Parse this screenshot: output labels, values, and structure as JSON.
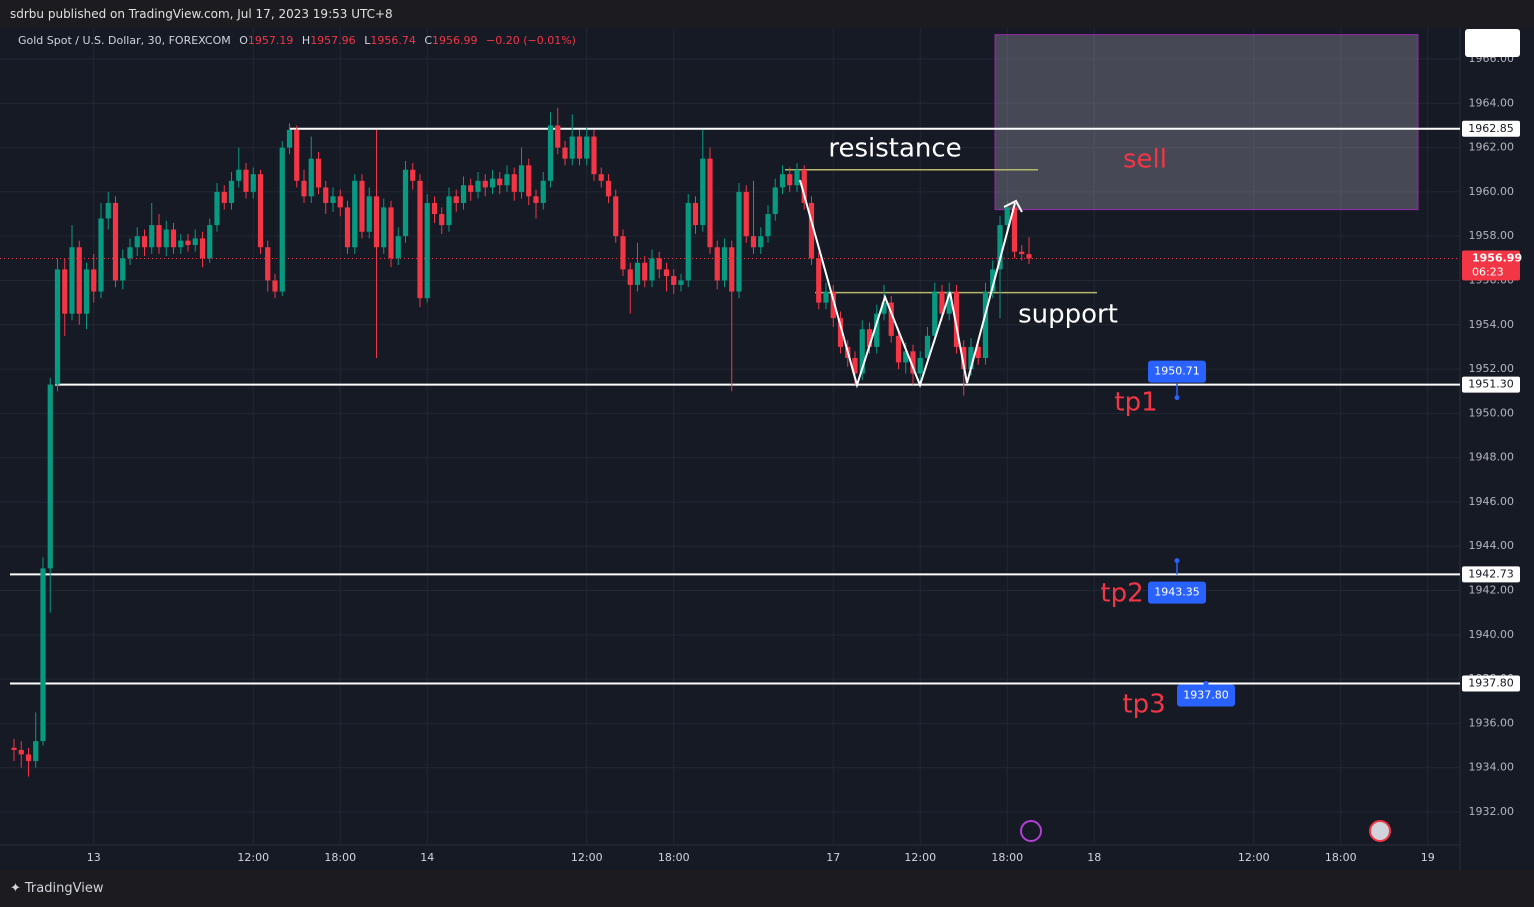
{
  "header": {
    "publisher": "sdrbu published on TradingView.com, Jul 17, 2023 19:53 UTC+8"
  },
  "footer": {
    "brand": "TradingView"
  },
  "chart_data": {
    "type": "candlestick",
    "title": "Gold Spot / U.S. Dollar, 30, FOREXCOM",
    "ohlc_labels": [
      "O",
      "H",
      "L",
      "C"
    ],
    "change": "−0.20 (−0.01%)",
    "countdown": "06:23",
    "xlim": [
      -1.93,
      199.45
    ],
    "ylim": [
      1930.51,
      1967.4
    ],
    "grid": true,
    "up_color": "#089981",
    "down_color": "#f23645",
    "xticks": [
      {
        "value": 11,
        "label": "13"
      },
      {
        "value": 33,
        "label": "12:00"
      },
      {
        "value": 45,
        "label": "18:00"
      },
      {
        "value": 57,
        "label": "14"
      },
      {
        "value": 79,
        "label": "12:00"
      },
      {
        "value": 91,
        "label": "18:00"
      },
      {
        "value": 113,
        "label": "17"
      },
      {
        "value": 125,
        "label": "12:00"
      },
      {
        "value": 137,
        "label": "18:00"
      },
      {
        "value": 149,
        "label": "18"
      },
      {
        "value": 171,
        "label": "12:00"
      },
      {
        "value": 183,
        "label": "18:00"
      },
      {
        "value": 195,
        "label": "19"
      }
    ],
    "yticks": [
      {
        "value": 1932,
        "label": "1932.00"
      },
      {
        "value": 1934,
        "label": "1934.00"
      },
      {
        "value": 1936,
        "label": "1936.00"
      },
      {
        "value": 1938,
        "label": "1938.00"
      },
      {
        "value": 1940,
        "label": "1940.00"
      },
      {
        "value": 1942,
        "label": "1942.00"
      },
      {
        "value": 1944,
        "label": "1944.00"
      },
      {
        "value": 1946,
        "label": "1946.00"
      },
      {
        "value": 1948,
        "label": "1948.00"
      },
      {
        "value": 1950,
        "label": "1950.00"
      },
      {
        "value": 1952,
        "label": "1952.00"
      },
      {
        "value": 1954,
        "label": "1954.00"
      },
      {
        "value": 1956,
        "label": "1956.00"
      },
      {
        "value": 1958,
        "label": "1958.00"
      },
      {
        "value": 1960,
        "label": "1960.00"
      },
      {
        "value": 1962,
        "label": "1962.00"
      },
      {
        "value": 1964,
        "label": "1964.00"
      },
      {
        "value": 1966,
        "label": "1966.00"
      }
    ],
    "levels": [
      {
        "value": 1962.85,
        "label": "1962.85"
      },
      {
        "value": 1951.3,
        "label": "1951.30"
      },
      {
        "value": 1942.73,
        "label": "1942.73"
      },
      {
        "value": 1937.8,
        "label": "1937.80"
      }
    ],
    "targets": [
      {
        "value": 1950.71,
        "label": "1950.71"
      },
      {
        "value": 1943.35,
        "label": "1943.35"
      },
      {
        "value": 1937.8,
        "label": "1937.80"
      }
    ],
    "resistance_level": 1961.0,
    "support_level": 1955.45,
    "sell_zone": [
      1959.2,
      1967.1
    ],
    "annotations": [
      {
        "text": "resistance"
      },
      {
        "text": "support"
      },
      {
        "text": "sell"
      },
      {
        "text": "tp1"
      },
      {
        "text": "tp2"
      },
      {
        "text": "tp3"
      }
    ],
    "candles": [
      [
        1934.9,
        1935.3,
        1934.3,
        1934.8
      ],
      [
        1934.8,
        1935.2,
        1934.0,
        1934.6
      ],
      [
        1934.6,
        1934.9,
        1933.6,
        1934.3
      ],
      [
        1934.3,
        1936.5,
        1934.0,
        1935.2
      ],
      [
        1935.2,
        1943.5,
        1935.0,
        1943.0
      ],
      [
        1943.0,
        1951.6,
        1941.0,
        1951.3
      ],
      [
        1951.3,
        1957.0,
        1951.0,
        1956.5
      ],
      [
        1956.5,
        1957.0,
        1953.5,
        1954.5
      ],
      [
        1954.5,
        1958.5,
        1954.2,
        1957.5
      ],
      [
        1957.5,
        1957.8,
        1954.0,
        1954.5
      ],
      [
        1954.5,
        1956.8,
        1953.8,
        1956.5
      ],
      [
        1956.5,
        1957.2,
        1955.0,
        1955.5
      ],
      [
        1955.5,
        1959.5,
        1955.2,
        1958.8
      ],
      [
        1958.8,
        1960.0,
        1958.3,
        1959.5
      ],
      [
        1959.5,
        1959.8,
        1955.7,
        1956.0
      ],
      [
        1956.0,
        1957.4,
        1955.6,
        1957.0
      ],
      [
        1957.0,
        1957.9,
        1956.7,
        1957.5
      ],
      [
        1957.5,
        1958.4,
        1957.1,
        1958.0
      ],
      [
        1958.0,
        1958.3,
        1957.1,
        1957.5
      ],
      [
        1957.5,
        1959.5,
        1957.2,
        1958.5
      ],
      [
        1958.5,
        1959.0,
        1957.2,
        1957.5
      ],
      [
        1957.5,
        1958.7,
        1957.1,
        1958.3
      ],
      [
        1958.3,
        1958.6,
        1957.2,
        1957.5
      ],
      [
        1957.5,
        1958.1,
        1957.2,
        1957.8
      ],
      [
        1957.8,
        1958.1,
        1957.3,
        1957.6
      ],
      [
        1957.6,
        1958.3,
        1957.3,
        1957.9
      ],
      [
        1957.9,
        1958.2,
        1956.6,
        1957.0
      ],
      [
        1957.0,
        1958.8,
        1956.8,
        1958.5
      ],
      [
        1958.5,
        1960.4,
        1958.2,
        1960.0
      ],
      [
        1960.0,
        1960.3,
        1959.2,
        1959.5
      ],
      [
        1959.5,
        1960.9,
        1959.2,
        1960.5
      ],
      [
        1960.5,
        1962.0,
        1960.2,
        1961.0
      ],
      [
        1961.0,
        1961.3,
        1959.7,
        1960.0
      ],
      [
        1960.0,
        1961.1,
        1959.7,
        1960.8
      ],
      [
        1960.8,
        1961.0,
        1957.2,
        1957.5
      ],
      [
        1957.5,
        1957.8,
        1955.5,
        1956.0
      ],
      [
        1956.0,
        1956.3,
        1955.2,
        1955.5
      ],
      [
        1955.5,
        1962.3,
        1955.3,
        1962.0
      ],
      [
        1962.0,
        1963.1,
        1961.7,
        1962.8
      ],
      [
        1962.8,
        1963.0,
        1960.2,
        1960.5
      ],
      [
        1960.5,
        1961.0,
        1959.5,
        1959.8
      ],
      [
        1959.8,
        1962.5,
        1959.5,
        1961.5
      ],
      [
        1961.5,
        1961.8,
        1959.9,
        1960.2
      ],
      [
        1960.2,
        1960.5,
        1959.0,
        1959.5
      ],
      [
        1959.5,
        1960.2,
        1959.1,
        1959.8
      ],
      [
        1959.8,
        1960.1,
        1958.9,
        1959.3
      ],
      [
        1959.3,
        1959.6,
        1957.2,
        1957.5
      ],
      [
        1957.5,
        1960.8,
        1957.2,
        1960.5
      ],
      [
        1960.5,
        1960.8,
        1957.9,
        1958.2
      ],
      [
        1958.2,
        1960.2,
        1957.9,
        1959.8
      ],
      [
        1959.8,
        1962.8,
        1952.5,
        1957.5
      ],
      [
        1957.5,
        1959.7,
        1957.2,
        1959.3
      ],
      [
        1959.3,
        1959.6,
        1956.6,
        1957.0
      ],
      [
        1957.0,
        1958.4,
        1956.7,
        1958.0
      ],
      [
        1958.0,
        1961.4,
        1957.7,
        1961.0
      ],
      [
        1961.0,
        1961.3,
        1960.1,
        1960.5
      ],
      [
        1960.5,
        1960.8,
        1954.8,
        1955.2
      ],
      [
        1955.2,
        1959.9,
        1955.0,
        1959.5
      ],
      [
        1959.5,
        1959.8,
        1958.6,
        1959.0
      ],
      [
        1959.0,
        1959.3,
        1958.1,
        1958.5
      ],
      [
        1958.5,
        1960.2,
        1958.2,
        1959.8
      ],
      [
        1959.8,
        1960.1,
        1959.1,
        1959.5
      ],
      [
        1959.5,
        1960.7,
        1959.2,
        1960.3
      ],
      [
        1960.3,
        1960.6,
        1959.6,
        1960.0
      ],
      [
        1960.0,
        1960.9,
        1959.7,
        1960.5
      ],
      [
        1960.5,
        1960.8,
        1959.8,
        1960.2
      ],
      [
        1960.2,
        1961.0,
        1959.9,
        1960.6
      ],
      [
        1960.6,
        1960.9,
        1959.9,
        1960.3
      ],
      [
        1960.3,
        1961.2,
        1960.0,
        1960.8
      ],
      [
        1960.8,
        1961.1,
        1959.6,
        1960.0
      ],
      [
        1960.0,
        1962.0,
        1959.7,
        1961.2
      ],
      [
        1961.2,
        1961.5,
        1959.4,
        1959.8
      ],
      [
        1959.8,
        1960.1,
        1958.8,
        1959.5
      ],
      [
        1959.5,
        1960.9,
        1959.2,
        1960.5
      ],
      [
        1960.5,
        1963.6,
        1960.2,
        1963.0
      ],
      [
        1963.0,
        1963.8,
        1961.7,
        1962.0
      ],
      [
        1962.0,
        1962.3,
        1961.2,
        1961.5
      ],
      [
        1961.5,
        1963.5,
        1961.2,
        1962.5
      ],
      [
        1962.5,
        1962.8,
        1961.2,
        1961.5
      ],
      [
        1961.5,
        1962.9,
        1961.2,
        1962.5
      ],
      [
        1962.5,
        1962.8,
        1960.5,
        1960.8
      ],
      [
        1960.8,
        1961.1,
        1960.2,
        1960.5
      ],
      [
        1960.5,
        1960.8,
        1959.5,
        1959.8
      ],
      [
        1959.8,
        1960.1,
        1957.7,
        1958.0
      ],
      [
        1958.0,
        1958.3,
        1956.2,
        1956.5
      ],
      [
        1956.5,
        1956.8,
        1954.5,
        1955.8
      ],
      [
        1955.8,
        1957.7,
        1955.5,
        1956.8
      ],
      [
        1956.8,
        1957.1,
        1955.7,
        1956.0
      ],
      [
        1956.0,
        1957.4,
        1955.7,
        1957.0
      ],
      [
        1957.0,
        1957.3,
        1956.1,
        1956.5
      ],
      [
        1956.5,
        1956.8,
        1955.5,
        1956.2
      ],
      [
        1956.2,
        1956.5,
        1955.4,
        1955.8
      ],
      [
        1955.8,
        1956.3,
        1955.5,
        1956.0
      ],
      [
        1956.0,
        1959.9,
        1955.7,
        1959.5
      ],
      [
        1959.5,
        1959.8,
        1958.1,
        1958.5
      ],
      [
        1958.5,
        1962.8,
        1958.2,
        1961.5
      ],
      [
        1961.5,
        1962.0,
        1957.2,
        1957.5
      ],
      [
        1957.5,
        1957.8,
        1955.6,
        1956.0
      ],
      [
        1956.0,
        1957.9,
        1955.7,
        1957.5
      ],
      [
        1957.5,
        1957.8,
        1951.0,
        1955.5
      ],
      [
        1955.5,
        1960.4,
        1955.2,
        1960.0
      ],
      [
        1960.0,
        1960.3,
        1957.7,
        1958.0
      ],
      [
        1958.0,
        1960.5,
        1957.2,
        1957.5
      ],
      [
        1957.5,
        1958.4,
        1957.2,
        1958.0
      ],
      [
        1958.0,
        1959.4,
        1957.7,
        1959.0
      ],
      [
        1959.0,
        1960.6,
        1958.7,
        1960.2
      ],
      [
        1960.2,
        1961.2,
        1959.9,
        1960.8
      ],
      [
        1960.8,
        1961.1,
        1960.0,
        1960.3
      ],
      [
        1960.3,
        1961.3,
        1960.0,
        1961.0
      ],
      [
        1961.0,
        1961.2,
        1959.2,
        1959.5
      ],
      [
        1959.5,
        1959.8,
        1956.7,
        1957.0
      ],
      [
        1957.0,
        1957.3,
        1954.7,
        1955.0
      ],
      [
        1955.0,
        1955.9,
        1954.7,
        1955.5
      ],
      [
        1955.5,
        1955.8,
        1953.9,
        1954.3
      ],
      [
        1954.3,
        1954.6,
        1952.7,
        1953.0
      ],
      [
        1953.0,
        1953.3,
        1952.1,
        1952.5
      ],
      [
        1952.5,
        1952.8,
        1951.3,
        1951.8
      ],
      [
        1951.8,
        1954.2,
        1951.5,
        1953.8
      ],
      [
        1953.8,
        1954.1,
        1952.7,
        1953.0
      ],
      [
        1953.0,
        1954.9,
        1952.7,
        1954.5
      ],
      [
        1954.5,
        1955.8,
        1954.2,
        1955.0
      ],
      [
        1955.0,
        1955.3,
        1953.2,
        1953.5
      ],
      [
        1953.5,
        1953.8,
        1952.0,
        1952.3
      ],
      [
        1952.3,
        1953.2,
        1951.8,
        1952.8
      ],
      [
        1952.8,
        1953.1,
        1951.3,
        1951.8
      ],
      [
        1951.8,
        1952.8,
        1951.4,
        1952.5
      ],
      [
        1952.5,
        1953.9,
        1952.2,
        1953.5
      ],
      [
        1953.5,
        1955.9,
        1953.2,
        1955.5
      ],
      [
        1955.5,
        1955.8,
        1954.2,
        1954.5
      ],
      [
        1954.5,
        1955.9,
        1954.2,
        1955.5
      ],
      [
        1955.5,
        1955.8,
        1952.7,
        1953.0
      ],
      [
        1953.0,
        1953.3,
        1950.8,
        1952.0
      ],
      [
        1952.0,
        1953.4,
        1951.7,
        1953.0
      ],
      [
        1953.0,
        1953.3,
        1952.2,
        1952.5
      ],
      [
        1952.5,
        1955.9,
        1952.2,
        1955.5
      ],
      [
        1955.5,
        1956.9,
        1955.2,
        1956.5
      ],
      [
        1956.5,
        1958.9,
        1954.3,
        1958.5
      ],
      [
        1958.5,
        1959.6,
        1958.2,
        1959.3
      ],
      [
        1959.3,
        1959.6,
        1957.0,
        1957.3
      ],
      [
        1957.3,
        1957.6,
        1956.9,
        1957.19
      ],
      [
        1957.19,
        1957.96,
        1956.74,
        1956.99
      ]
    ]
  }
}
